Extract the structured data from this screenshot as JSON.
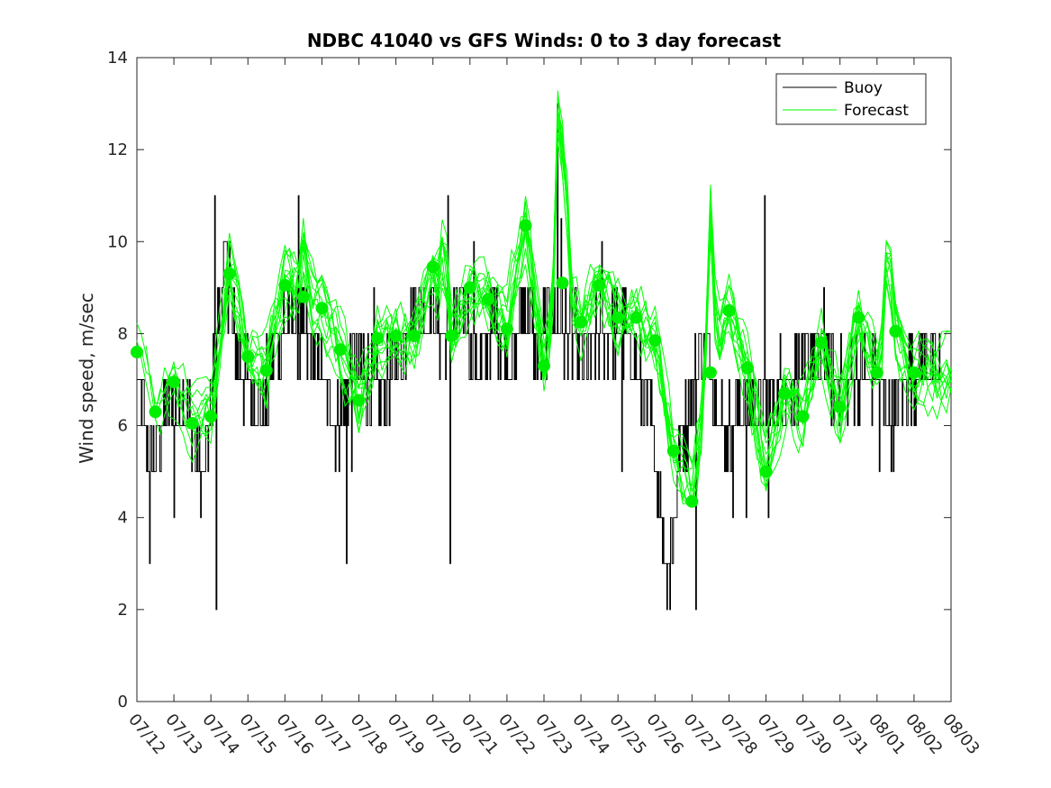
{
  "chart_data": {
    "type": "line",
    "title": "NDBC 41040 vs GFS Winds: 0 to 3 day forecast",
    "xlabel": "",
    "ylabel": "Wind speed, m/sec",
    "x_ticks": [
      "07/12",
      "07/13",
      "07/14",
      "07/15",
      "07/16",
      "07/17",
      "07/18",
      "07/19",
      "07/20",
      "07/21",
      "07/22",
      "07/23",
      "07/24",
      "07/25",
      "07/26",
      "07/27",
      "07/28",
      "07/29",
      "07/30",
      "07/31",
      "08/01",
      "08/02",
      "08/03"
    ],
    "y_ticks": [
      "0",
      "2",
      "4",
      "6",
      "8",
      "10",
      "12",
      "14"
    ],
    "xlim_days": [
      0,
      22
    ],
    "ylim": [
      0,
      14
    ],
    "legend": {
      "location": "top-right",
      "entries": [
        "Buoy",
        "Forecast"
      ]
    },
    "colors": {
      "buoy": "#000000",
      "forecast": "#00ff00",
      "marker": "#00ee00",
      "axis": "#262626"
    },
    "buoy_anchors_day_speed": [
      [
        0,
        7
      ],
      [
        0.1,
        6.5
      ],
      [
        0.2,
        6
      ],
      [
        0.35,
        5
      ],
      [
        0.5,
        5.5
      ],
      [
        0.7,
        6
      ],
      [
        0.9,
        6.5
      ],
      [
        1,
        6.5
      ],
      [
        1.2,
        6.5
      ],
      [
        1.4,
        6
      ],
      [
        1.6,
        5.5
      ],
      [
        1.8,
        5
      ],
      [
        1.95,
        6
      ],
      [
        2.1,
        7.5
      ],
      [
        2.25,
        8.5
      ],
      [
        2.4,
        9.5
      ],
      [
        2.55,
        8.5
      ],
      [
        2.7,
        7.5
      ],
      [
        2.85,
        7
      ],
      [
        3.0,
        7
      ],
      [
        3.2,
        6.5
      ],
      [
        3.4,
        6.5
      ],
      [
        3.6,
        7
      ],
      [
        3.75,
        8
      ],
      [
        3.9,
        8
      ],
      [
        4.05,
        8.5
      ],
      [
        4.2,
        8.5
      ],
      [
        4.4,
        8
      ],
      [
        4.6,
        8
      ],
      [
        4.8,
        7.5
      ],
      [
        5.0,
        7
      ],
      [
        5.2,
        6.5
      ],
      [
        5.4,
        6
      ],
      [
        5.6,
        6.5
      ],
      [
        5.8,
        7.5
      ],
      [
        6.0,
        7.5
      ],
      [
        6.2,
        7
      ],
      [
        6.4,
        7
      ],
      [
        6.6,
        6.5
      ],
      [
        6.8,
        7
      ],
      [
        7.0,
        7.5
      ],
      [
        7.2,
        8
      ],
      [
        7.4,
        8.5
      ],
      [
        7.6,
        8.5
      ],
      [
        7.8,
        8.5
      ],
      [
        8.0,
        8.5
      ],
      [
        8.2,
        8
      ],
      [
        8.4,
        8
      ],
      [
        8.6,
        8.5
      ],
      [
        8.8,
        8.5
      ],
      [
        9.0,
        8
      ],
      [
        9.2,
        7.5
      ],
      [
        9.4,
        7.5
      ],
      [
        9.6,
        8.5
      ],
      [
        9.8,
        8
      ],
      [
        10.0,
        7.5
      ],
      [
        10.2,
        7.5
      ],
      [
        10.4,
        8.5
      ],
      [
        10.6,
        8.5
      ],
      [
        10.8,
        7.5
      ],
      [
        11.0,
        8
      ],
      [
        11.2,
        8.5
      ],
      [
        11.4,
        8
      ],
      [
        11.6,
        8
      ],
      [
        11.8,
        8
      ],
      [
        12.0,
        7.5
      ],
      [
        12.2,
        7.5
      ],
      [
        12.4,
        8
      ],
      [
        12.6,
        8
      ],
      [
        12.8,
        8
      ],
      [
        13.0,
        8
      ],
      [
        13.2,
        8
      ],
      [
        13.4,
        7.5
      ],
      [
        13.6,
        7
      ],
      [
        13.8,
        6.5
      ],
      [
        14.0,
        5.5
      ],
      [
        14.15,
        4
      ],
      [
        14.3,
        3
      ],
      [
        14.45,
        3.5
      ],
      [
        14.6,
        5
      ],
      [
        14.8,
        6
      ],
      [
        15.0,
        6.5
      ],
      [
        15.2,
        7.5
      ],
      [
        15.4,
        7.5
      ],
      [
        15.6,
        7
      ],
      [
        15.8,
        6
      ],
      [
        16.0,
        6
      ],
      [
        16.2,
        6.5
      ],
      [
        16.4,
        6.5
      ],
      [
        16.6,
        6.5
      ],
      [
        16.8,
        6.5
      ],
      [
        17.0,
        6.5
      ],
      [
        17.2,
        6.5
      ],
      [
        17.4,
        7
      ],
      [
        17.6,
        7
      ],
      [
        17.8,
        7
      ],
      [
        18.0,
        7
      ],
      [
        18.2,
        7.5
      ],
      [
        18.4,
        7.5
      ],
      [
        18.6,
        7.5
      ],
      [
        18.8,
        7
      ],
      [
        19.0,
        7
      ],
      [
        19.2,
        7
      ],
      [
        19.4,
        7
      ],
      [
        19.6,
        7
      ],
      [
        19.8,
        7
      ],
      [
        20.0,
        7
      ],
      [
        20.2,
        6.5
      ],
      [
        20.4,
        6
      ],
      [
        20.6,
        6.5
      ],
      [
        20.8,
        7
      ],
      [
        21.0,
        7
      ],
      [
        21.2,
        7.5
      ],
      [
        21.4,
        7.5
      ],
      [
        21.6,
        7
      ],
      [
        21.7,
        7
      ]
    ],
    "buoy_spikes_day_speed": [
      [
        0.35,
        3
      ],
      [
        1.0,
        4
      ],
      [
        2.1,
        11
      ],
      [
        2.15,
        2
      ],
      [
        2.5,
        10
      ],
      [
        4.35,
        11
      ],
      [
        4.6,
        7
      ],
      [
        5.65,
        3
      ],
      [
        5.8,
        5
      ],
      [
        6.4,
        9
      ],
      [
        8.4,
        11
      ],
      [
        8.45,
        3
      ],
      [
        9.1,
        10
      ],
      [
        11.35,
        13
      ],
      [
        11.45,
        10.5
      ],
      [
        12.55,
        10
      ],
      [
        13.1,
        5
      ],
      [
        14.4,
        2
      ],
      [
        15.1,
        2
      ],
      [
        16.1,
        4
      ],
      [
        16.45,
        4
      ],
      [
        16.95,
        11
      ],
      [
        17.05,
        4
      ],
      [
        18.55,
        9
      ],
      [
        20.05,
        5
      ]
    ],
    "forecast_markers_day_speed": [
      [
        0,
        7.6
      ],
      [
        0.5,
        6.3
      ],
      [
        1,
        6.95
      ],
      [
        1.5,
        6.05
      ],
      [
        2,
        6.2
      ],
      [
        2.5,
        9.3
      ],
      [
        3,
        7.5
      ],
      [
        3.5,
        7.2
      ],
      [
        4,
        9.05
      ],
      [
        4.5,
        8.8
      ],
      [
        5,
        8.55
      ],
      [
        5.5,
        7.65
      ],
      [
        6,
        6.55
      ],
      [
        6.5,
        7.9
      ],
      [
        7,
        7.95
      ],
      [
        7.5,
        7.95
      ],
      [
        8,
        9.45
      ],
      [
        8.5,
        7.95
      ],
      [
        9,
        9.0
      ],
      [
        9.5,
        8.75
      ],
      [
        10,
        8.1
      ],
      [
        10.5,
        10.35
      ],
      [
        11,
        7.3
      ],
      [
        11.5,
        9.1
      ],
      [
        12,
        8.25
      ],
      [
        12.5,
        9.05
      ],
      [
        13,
        8.35
      ],
      [
        13.5,
        8.35
      ],
      [
        14,
        7.85
      ],
      [
        14.5,
        5.45
      ],
      [
        15,
        4.35
      ],
      [
        15.5,
        7.15
      ],
      [
        16,
        8.5
      ],
      [
        16.5,
        7.25
      ],
      [
        17,
        5.0
      ],
      [
        17.5,
        6.7
      ],
      [
        18,
        6.2
      ],
      [
        18.5,
        7.8
      ],
      [
        19,
        6.4
      ],
      [
        19.5,
        8.35
      ],
      [
        20,
        7.15
      ],
      [
        20.5,
        8.05
      ],
      [
        21,
        7.15
      ]
    ],
    "forecast_peaks_day_speed": [
      [
        11.4,
        13.7
      ],
      [
        11.55,
        12.4
      ],
      [
        15.5,
        11.2
      ],
      [
        20.3,
        10.3
      ],
      [
        8.3,
        10.4
      ],
      [
        4.5,
        10.1
      ]
    ]
  }
}
